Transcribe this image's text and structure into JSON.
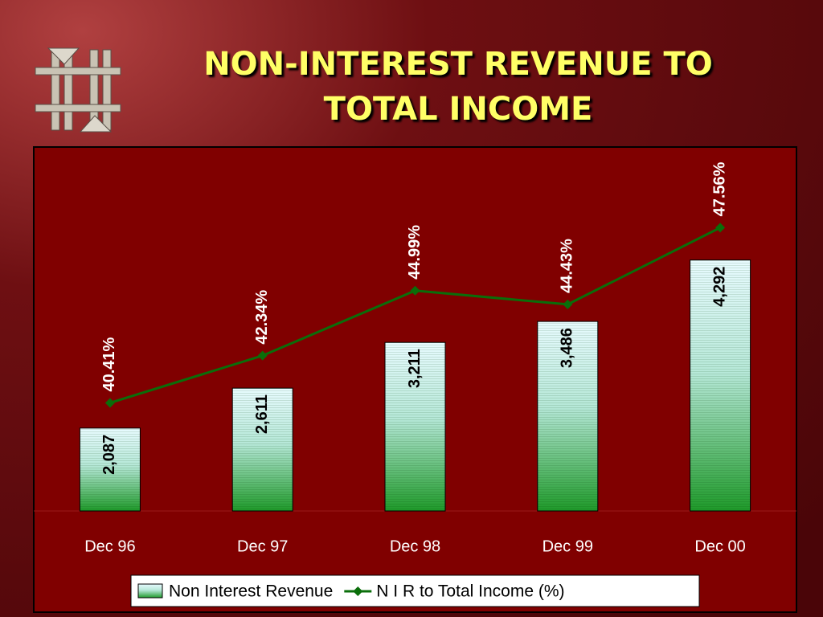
{
  "chart_data": {
    "type": "bar",
    "title": "NON-INTEREST REVENUE TO TOTAL INCOME",
    "categories": [
      "Dec 96",
      "Dec 97",
      "Dec 98",
      "Dec 99",
      "Dec 00"
    ],
    "series": [
      {
        "name": "Non Interest Revenue",
        "type": "bar",
        "color": "#2e9e3a",
        "values": [
          2087,
          2611,
          3211,
          3486,
          4292
        ],
        "value_labels": [
          "2,087",
          "2,611",
          "3,211",
          "3,486",
          "4,292"
        ]
      },
      {
        "name": "N I R to Total Income (%)",
        "type": "line",
        "axis": "y2",
        "color": "#0a6e0a",
        "values": [
          40.41,
          42.34,
          44.99,
          44.43,
          47.56
        ],
        "value_labels": [
          "40.41%",
          "42.34%",
          "44.99%",
          "44.43%",
          "47.56%"
        ]
      }
    ],
    "ylim": [
      1000,
      5500
    ],
    "y2lim": [
      36,
      50
    ],
    "legend": "bottom"
  }
}
